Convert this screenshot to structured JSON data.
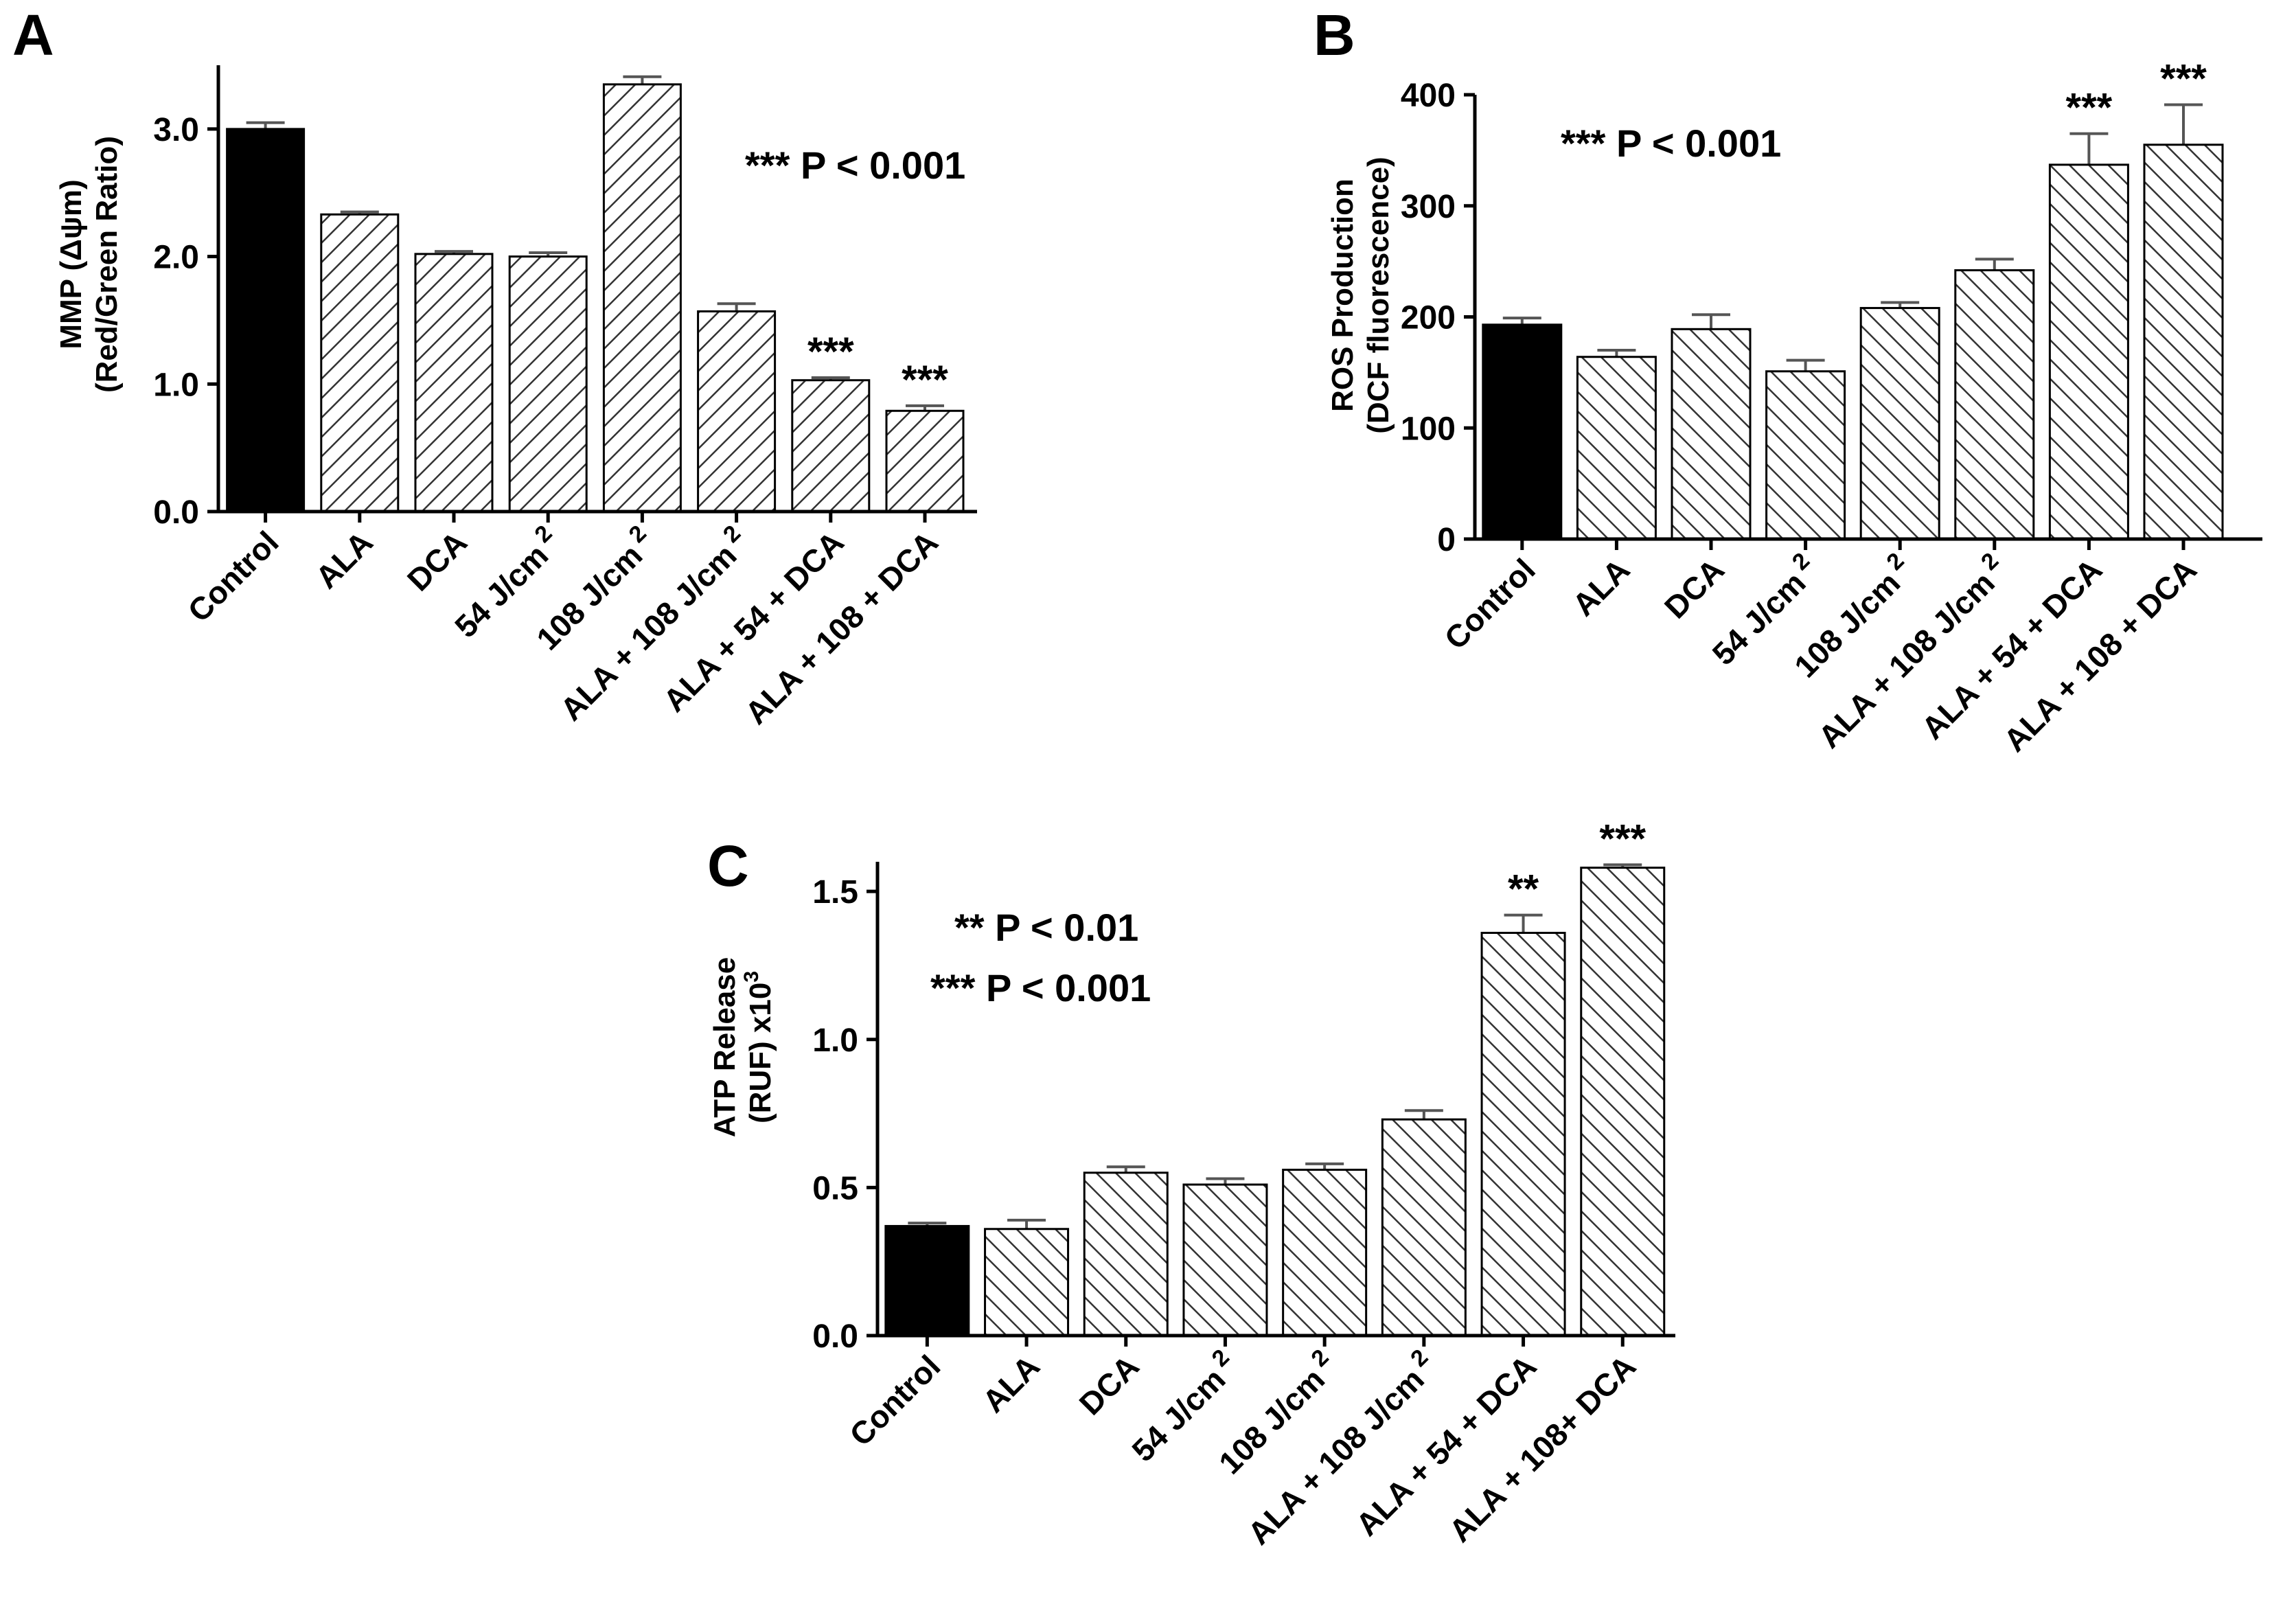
{
  "chart_data": [
    {
      "panel": "A",
      "type": "bar",
      "ylabel": [
        "MMP (Δψm)",
        "(Red/Green Ratio)"
      ],
      "ylim": [
        0,
        3.5
      ],
      "yticks": [
        "0.0",
        "1.0",
        "2.0",
        "3.0"
      ],
      "ytick_values": [
        0,
        1,
        2,
        3
      ],
      "categories": [
        {
          "text": "Control",
          "sup": ""
        },
        {
          "text": "ALA",
          "sup": ""
        },
        {
          "text": "DCA",
          "sup": ""
        },
        {
          "text": "54 J/cm",
          "sup": "2"
        },
        {
          "text": "108 J/cm",
          "sup": "2"
        },
        {
          "text": "ALA + 108 J/cm",
          "sup": "2"
        },
        {
          "text": "ALA + 54 + DCA",
          "sup": ""
        },
        {
          "text": "ALA + 108 + DCA",
          "sup": ""
        }
      ],
      "values": [
        3.0,
        2.33,
        2.02,
        2.0,
        3.35,
        1.57,
        1.03,
        0.79
      ],
      "errors": [
        0.05,
        0.02,
        0.02,
        0.03,
        0.06,
        0.06,
        0.02,
        0.04
      ],
      "significance": [
        "",
        "",
        "",
        "",
        "",
        "",
        "***",
        "***"
      ],
      "p_notes": [
        "*** P < 0.001"
      ]
    },
    {
      "panel": "B",
      "type": "bar",
      "ylabel": [
        "ROS Production",
        "(DCF fluorescence)"
      ],
      "ylim": [
        0,
        400
      ],
      "yticks": [
        "0",
        "100",
        "200",
        "300",
        "400"
      ],
      "ytick_values": [
        0,
        100,
        200,
        300,
        400
      ],
      "categories": [
        {
          "text": "Control",
          "sup": ""
        },
        {
          "text": "ALA",
          "sup": ""
        },
        {
          "text": "DCA",
          "sup": ""
        },
        {
          "text": "54 J/cm",
          "sup": "2"
        },
        {
          "text": "108 J/cm",
          "sup": "2"
        },
        {
          "text": "ALA + 108 J/cm",
          "sup": "2"
        },
        {
          "text": "ALA + 54 + DCA",
          "sup": ""
        },
        {
          "text": "ALA + 108 + DCA",
          "sup": ""
        }
      ],
      "values": [
        193,
        164,
        189,
        151,
        208,
        242,
        337,
        355
      ],
      "errors": [
        6,
        6,
        13,
        10,
        5,
        10,
        28,
        36
      ],
      "significance": [
        "",
        "",
        "",
        "",
        "",
        "",
        "***",
        "***"
      ],
      "p_notes": [
        "*** P < 0.001"
      ]
    },
    {
      "panel": "C",
      "type": "bar",
      "ylabel": [
        "ATP Release",
        "(RUF) x10",
        "3"
      ],
      "ylim": [
        0,
        1.6
      ],
      "yticks": [
        "0.0",
        "0.5",
        "1.0",
        "1.5"
      ],
      "ytick_values": [
        0,
        0.5,
        1.0,
        1.5
      ],
      "categories": [
        {
          "text": "Control",
          "sup": ""
        },
        {
          "text": "ALA",
          "sup": ""
        },
        {
          "text": "DCA",
          "sup": ""
        },
        {
          "text": "54 J/cm",
          "sup": "2"
        },
        {
          "text": "108 J/cm",
          "sup": "2"
        },
        {
          "text": "ALA + 108 J/cm",
          "sup": "2"
        },
        {
          "text": "ALA + 54 + DCA",
          "sup": ""
        },
        {
          "text": "ALA + 108+ DCA",
          "sup": ""
        }
      ],
      "values": [
        0.37,
        0.36,
        0.55,
        0.51,
        0.56,
        0.73,
        1.36,
        1.58
      ],
      "errors": [
        0.01,
        0.03,
        0.02,
        0.02,
        0.02,
        0.03,
        0.06,
        0.01
      ],
      "significance": [
        "",
        "",
        "",
        "",
        "",
        "",
        "**",
        "***"
      ],
      "p_notes": [
        "** P < 0.01",
        "*** P < 0.001"
      ]
    }
  ]
}
